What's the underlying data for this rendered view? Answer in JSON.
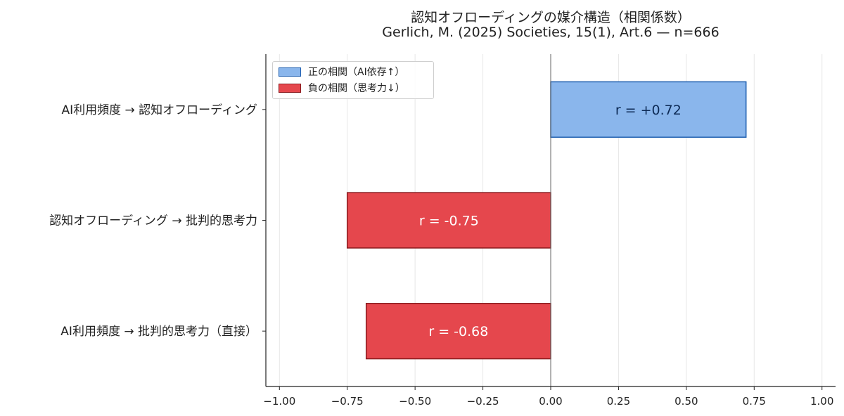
{
  "chart_data": {
    "type": "bar",
    "orientation": "horizontal",
    "title": "認知オフローディングの媒介構造（相関係数）",
    "subtitle": "Gerlich, M. (2025) Societies, 15(1), Art.6 — n=666",
    "xlabel": "",
    "ylabel": "",
    "xlim": [
      -1.05,
      1.05
    ],
    "xticks": [
      -1.0,
      -0.75,
      -0.5,
      -0.25,
      0.0,
      0.25,
      0.5,
      0.75,
      1.0
    ],
    "xtick_labels": [
      "−1.00",
      "−0.75",
      "−0.50",
      "−0.25",
      "0.00",
      "0.25",
      "0.50",
      "0.75",
      "1.00"
    ],
    "grid": "vertical",
    "legend_position": "top-left",
    "categories": [
      "AI利用頻度 → 批判的思考力（直接）",
      "認知オフローディング → 批判的思考力",
      "AI利用頻度 → 認知オフローディング"
    ],
    "values": [
      -0.68,
      -0.75,
      0.72
    ],
    "bar_labels": [
      "r = -0.68",
      "r = -0.75",
      "r = +0.72"
    ],
    "legend": [
      {
        "label": "正の相関（AI依存↑）",
        "fill": "#8ab6ec",
        "edge": "#1f5fb0"
      },
      {
        "label": "負の相関（思考力↓）",
        "fill": "#e5474d",
        "edge": "#8a1c20"
      }
    ],
    "colors": {
      "positive_fill": "#8ab6ec",
      "positive_edge": "#1f5fb0",
      "negative_fill": "#e5474d",
      "negative_edge": "#8a1c20",
      "positive_text": "#0d2a55",
      "negative_text": "#ffffff"
    }
  }
}
